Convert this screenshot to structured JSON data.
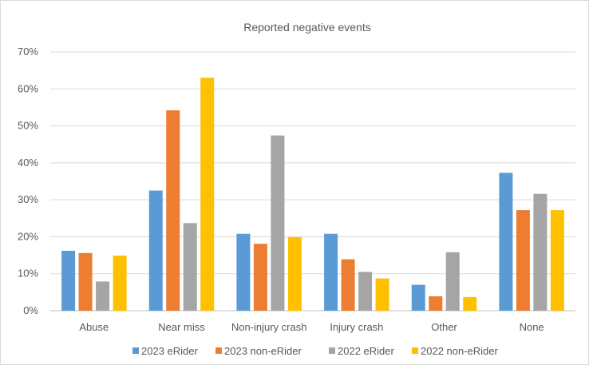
{
  "chart_data": {
    "type": "bar",
    "title": "Reported negative events",
    "xlabel": "",
    "ylabel": "",
    "ylim": [
      0,
      70
    ],
    "yticks": [
      "0%",
      "10%",
      "20%",
      "30%",
      "40%",
      "50%",
      "60%",
      "70%"
    ],
    "categories": [
      "Abuse",
      "Near miss",
      "Non-injury crash",
      "Injury crash",
      "Other",
      "None"
    ],
    "series": [
      {
        "name": "2023 eRider",
        "color": "#5b9bd5",
        "values": [
          16.2,
          32.5,
          20.8,
          20.8,
          7.0,
          37.3
        ]
      },
      {
        "name": "2023 non-eRider",
        "color": "#ed7d31",
        "values": [
          15.6,
          54.2,
          18.1,
          13.9,
          3.9,
          27.2
        ]
      },
      {
        "name": "2022 eRider",
        "color": "#a5a5a5",
        "values": [
          7.9,
          23.7,
          47.4,
          10.5,
          15.8,
          31.6
        ]
      },
      {
        "name": "2022 non-eRider",
        "color": "#ffc000",
        "values": [
          14.9,
          63.0,
          19.9,
          8.7,
          3.7,
          27.2
        ]
      }
    ],
    "grid": true,
    "legend": "bottom"
  }
}
